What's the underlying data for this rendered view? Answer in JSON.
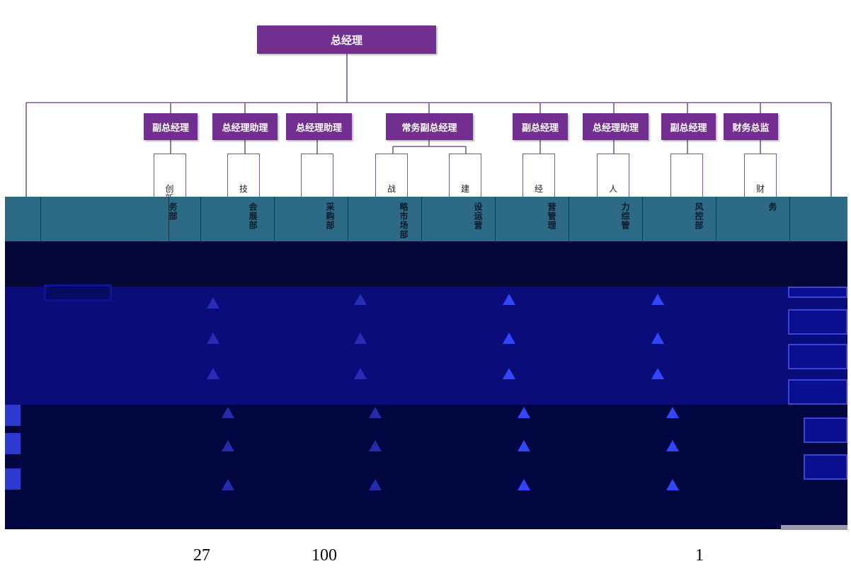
{
  "org": {
    "ceo": "总经理",
    "vps": [
      "副总经理",
      "总经理助理",
      "总经理助理",
      "常务副总经理",
      "副总经理",
      "总经理助理",
      "副总经理",
      "财务总监"
    ],
    "dept_top_chars": [
      "创新业",
      "技",
      "",
      "战",
      "建",
      "经",
      "人",
      "",
      "财"
    ],
    "stripe_texts": [
      "务部",
      "会展部",
      "采购部",
      "略市场部",
      "设运营",
      "营管理",
      "力综管",
      "风控部",
      "务"
    ]
  },
  "footer": {
    "values": [
      "27",
      "100",
      "1"
    ]
  },
  "colors": {
    "box": "#722f8f",
    "stripe": "#2c6a86",
    "panel": "#0a0c7a",
    "dark": "#04083a"
  }
}
